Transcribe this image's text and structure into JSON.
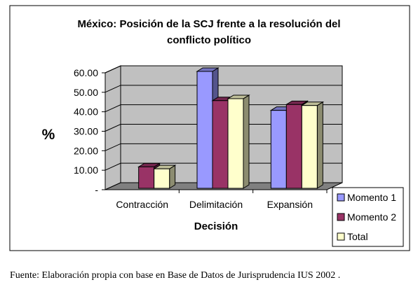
{
  "chart_data": {
    "type": "bar",
    "title_lines": [
      "México: Posición de la SCJ frente a la resolución del",
      "conflicto político"
    ],
    "xlabel": "Decisión",
    "ylabel": "%",
    "categories": [
      "Contracción",
      "Delimitación",
      "Expansión"
    ],
    "series": [
      {
        "name": "Momento 1",
        "color": "#9999ff",
        "values": [
          0,
          60.0,
          40.0
        ]
      },
      {
        "name": "Momento 2",
        "color": "#993366",
        "values": [
          11.0,
          45.0,
          43.0
        ]
      },
      {
        "name": "Total",
        "color": "#ffffcc",
        "values": [
          10.0,
          46.0,
          42.5
        ]
      }
    ],
    "ylim": [
      0,
      60
    ],
    "y_ticks": [
      "-",
      "10.00",
      "20.00",
      "30.00",
      "40.00",
      "50.00",
      "60.00"
    ],
    "grid": true,
    "legend_position": "bottom-right",
    "colors": {
      "wall": "#c0c0c0",
      "floor": "#808080",
      "background": "#ffffff",
      "border": "#000000"
    }
  },
  "source_note": "Fuente: Elaboración propia con base en Base de Datos de Jurisprudencia IUS 2002 ."
}
